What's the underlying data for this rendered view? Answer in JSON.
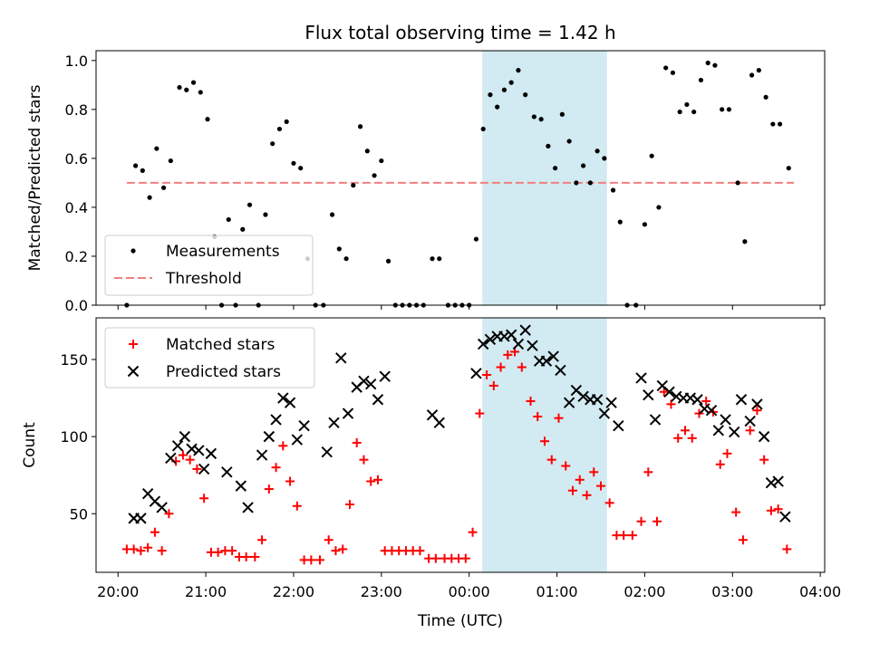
{
  "chart_data": [
    {
      "type": "scatter",
      "panel": "top",
      "title": "Flux total observing time = 1.42 h",
      "xlabel": "",
      "ylabel": "Matched/Predicted stars",
      "ylim": [
        0,
        1.04
      ],
      "yticks": [
        "0.0",
        "0.2",
        "0.4",
        "0.6",
        "0.8",
        "1.0"
      ],
      "ytick_values": [
        0,
        0.2,
        0.4,
        0.6,
        0.8,
        1.0
      ],
      "x_unit": "hours after 20:00 UTC",
      "xlim": [
        -0.25,
        8.05
      ],
      "threshold": {
        "name": "Threshold",
        "value": 0.5,
        "x_start": 0.1,
        "x_end": 7.7,
        "color": "#f08080"
      },
      "highlight": {
        "x_start": 4.15,
        "x_end": 5.57,
        "color": "#add8e6"
      },
      "legend": {
        "position": "lower-left",
        "entries": [
          "Measurements",
          "Threshold"
        ]
      },
      "series": [
        {
          "name": "Measurements",
          "color": "#000000",
          "points": [
            [
              0.1,
              0.0
            ],
            [
              0.2,
              0.57
            ],
            [
              0.28,
              0.55
            ],
            [
              0.36,
              0.44
            ],
            [
              0.44,
              0.64
            ],
            [
              0.52,
              0.48
            ],
            [
              0.6,
              0.59
            ],
            [
              0.7,
              0.89
            ],
            [
              0.78,
              0.88
            ],
            [
              0.86,
              0.91
            ],
            [
              0.94,
              0.87
            ],
            [
              1.02,
              0.76
            ],
            [
              1.1,
              0.28
            ],
            [
              1.18,
              0.0
            ],
            [
              1.26,
              0.35
            ],
            [
              1.34,
              0.0
            ],
            [
              1.42,
              0.31
            ],
            [
              1.5,
              0.41
            ],
            [
              1.6,
              0.0
            ],
            [
              1.68,
              0.37
            ],
            [
              1.76,
              0.66
            ],
            [
              1.84,
              0.72
            ],
            [
              1.92,
              0.75
            ],
            [
              2.0,
              0.58
            ],
            [
              2.08,
              0.56
            ],
            [
              2.16,
              0.19
            ],
            [
              2.25,
              0.0
            ],
            [
              2.34,
              0.0
            ],
            [
              2.44,
              0.37
            ],
            [
              2.52,
              0.23
            ],
            [
              2.6,
              0.19
            ],
            [
              2.68,
              0.49
            ],
            [
              2.76,
              0.73
            ],
            [
              2.84,
              0.63
            ],
            [
              2.92,
              0.53
            ],
            [
              3.0,
              0.59
            ],
            [
              3.08,
              0.18
            ],
            [
              3.16,
              0.0
            ],
            [
              3.24,
              0.0
            ],
            [
              3.32,
              0.0
            ],
            [
              3.4,
              0.0
            ],
            [
              3.48,
              0.0
            ],
            [
              3.58,
              0.19
            ],
            [
              3.66,
              0.19
            ],
            [
              3.76,
              0.0
            ],
            [
              3.84,
              0.0
            ],
            [
              3.92,
              0.0
            ],
            [
              4.0,
              0.0
            ],
            [
              4.08,
              0.27
            ],
            [
              4.16,
              0.72
            ],
            [
              4.24,
              0.86
            ],
            [
              4.32,
              0.81
            ],
            [
              4.4,
              0.88
            ],
            [
              4.48,
              0.91
            ],
            [
              4.56,
              0.96
            ],
            [
              4.64,
              0.86
            ],
            [
              4.74,
              0.77
            ],
            [
              4.82,
              0.76
            ],
            [
              4.9,
              0.65
            ],
            [
              4.98,
              0.56
            ],
            [
              5.06,
              0.78
            ],
            [
              5.14,
              0.67
            ],
            [
              5.22,
              0.5
            ],
            [
              5.3,
              0.57
            ],
            [
              5.38,
              0.5
            ],
            [
              5.46,
              0.63
            ],
            [
              5.54,
              0.6
            ],
            [
              5.64,
              0.47
            ],
            [
              5.72,
              0.34
            ],
            [
              5.8,
              0.0
            ],
            [
              5.9,
              0.0
            ],
            [
              6.0,
              0.33
            ],
            [
              6.08,
              0.61
            ],
            [
              6.16,
              0.4
            ],
            [
              6.24,
              0.97
            ],
            [
              6.32,
              0.95
            ],
            [
              6.4,
              0.79
            ],
            [
              6.48,
              0.82
            ],
            [
              6.56,
              0.79
            ],
            [
              6.64,
              0.92
            ],
            [
              6.72,
              0.99
            ],
            [
              6.8,
              0.98
            ],
            [
              6.88,
              0.8
            ],
            [
              6.96,
              0.8
            ],
            [
              7.06,
              0.5
            ],
            [
              7.14,
              0.26
            ],
            [
              7.22,
              0.94
            ],
            [
              7.3,
              0.96
            ],
            [
              7.38,
              0.85
            ],
            [
              7.46,
              0.74
            ],
            [
              7.54,
              0.74
            ],
            [
              7.64,
              0.56
            ]
          ]
        }
      ]
    },
    {
      "type": "scatter",
      "panel": "bottom",
      "title": "",
      "xlabel": "Time (UTC)",
      "ylabel": "Count",
      "ylim": [
        12,
        177
      ],
      "yticks": [
        "50",
        "100",
        "150"
      ],
      "ytick_values": [
        50,
        100,
        150
      ],
      "x_unit": "hours after 20:00 UTC",
      "xlim": [
        -0.25,
        8.05
      ],
      "xticks": [
        "20:00",
        "21:00",
        "22:00",
        "23:00",
        "00:00",
        "01:00",
        "02:00",
        "03:00",
        "04:00"
      ],
      "xtick_values": [
        0,
        1,
        2,
        3,
        4,
        5,
        6,
        7,
        8
      ],
      "highlight": {
        "x_start": 4.15,
        "x_end": 5.57,
        "color": "#add8e6"
      },
      "legend": {
        "position": "upper-left",
        "entries": [
          "Matched stars",
          "Predicted stars"
        ]
      },
      "series": [
        {
          "name": "Matched stars",
          "color": "#ff0000",
          "marker": "plus",
          "points": [
            [
              0.1,
              27
            ],
            [
              0.18,
              27
            ],
            [
              0.26,
              26
            ],
            [
              0.34,
              28
            ],
            [
              0.42,
              38
            ],
            [
              0.5,
              26
            ],
            [
              0.58,
              50
            ],
            [
              0.66,
              84
            ],
            [
              0.74,
              88
            ],
            [
              0.82,
              85
            ],
            [
              0.9,
              79
            ],
            [
              0.98,
              60
            ],
            [
              1.06,
              25
            ],
            [
              1.14,
              25
            ],
            [
              1.22,
              26
            ],
            [
              1.3,
              26
            ],
            [
              1.38,
              22
            ],
            [
              1.46,
              22
            ],
            [
              1.56,
              22
            ],
            [
              1.64,
              33
            ],
            [
              1.72,
              66
            ],
            [
              1.8,
              80
            ],
            [
              1.88,
              94
            ],
            [
              1.96,
              71
            ],
            [
              2.04,
              55
            ],
            [
              2.12,
              20
            ],
            [
              2.2,
              20
            ],
            [
              2.3,
              20
            ],
            [
              2.4,
              33
            ],
            [
              2.48,
              26
            ],
            [
              2.56,
              27
            ],
            [
              2.64,
              56
            ],
            [
              2.72,
              96
            ],
            [
              2.8,
              85
            ],
            [
              2.88,
              71
            ],
            [
              2.96,
              72
            ],
            [
              3.04,
              26
            ],
            [
              3.12,
              26
            ],
            [
              3.2,
              26
            ],
            [
              3.28,
              26
            ],
            [
              3.36,
              26
            ],
            [
              3.44,
              26
            ],
            [
              3.54,
              21
            ],
            [
              3.62,
              21
            ],
            [
              3.72,
              21
            ],
            [
              3.8,
              21
            ],
            [
              3.88,
              21
            ],
            [
              3.96,
              21
            ],
            [
              4.04,
              38
            ],
            [
              4.12,
              115
            ],
            [
              4.2,
              140
            ],
            [
              4.28,
              133
            ],
            [
              4.36,
              145
            ],
            [
              4.44,
              153
            ],
            [
              4.52,
              155
            ],
            [
              4.6,
              145
            ],
            [
              4.7,
              123
            ],
            [
              4.78,
              113
            ],
            [
              4.86,
              97
            ],
            [
              4.94,
              85
            ],
            [
              5.02,
              112
            ],
            [
              5.1,
              81
            ],
            [
              5.18,
              65
            ],
            [
              5.26,
              72
            ],
            [
              5.34,
              62
            ],
            [
              5.42,
              77
            ],
            [
              5.5,
              68
            ],
            [
              5.6,
              57
            ],
            [
              5.68,
              36
            ],
            [
              5.76,
              36
            ],
            [
              5.86,
              36
            ],
            [
              5.96,
              45
            ],
            [
              6.04,
              77
            ],
            [
              6.14,
              45
            ],
            [
              6.22,
              129
            ],
            [
              6.3,
              121
            ],
            [
              6.38,
              99
            ],
            [
              6.46,
              104
            ],
            [
              6.54,
              99
            ],
            [
              6.62,
              115
            ],
            [
              6.7,
              123
            ],
            [
              6.78,
              116
            ],
            [
              6.86,
              82
            ],
            [
              6.94,
              89
            ],
            [
              7.04,
              51
            ],
            [
              7.12,
              33
            ],
            [
              7.2,
              104
            ],
            [
              7.28,
              117
            ],
            [
              7.36,
              85
            ],
            [
              7.44,
              52
            ],
            [
              7.52,
              53
            ],
            [
              7.62,
              27
            ]
          ]
        },
        {
          "name": "Predicted stars",
          "color": "#000000",
          "marker": "x",
          "points": [
            [
              0.18,
              47
            ],
            [
              0.26,
              47
            ],
            [
              0.34,
              63
            ],
            [
              0.42,
              58
            ],
            [
              0.5,
              54
            ],
            [
              0.6,
              86
            ],
            [
              0.68,
              94
            ],
            [
              0.76,
              100
            ],
            [
              0.84,
              92
            ],
            [
              0.92,
              91
            ],
            [
              0.98,
              79
            ],
            [
              1.06,
              89
            ],
            [
              1.24,
              77
            ],
            [
              1.4,
              68
            ],
            [
              1.48,
              54
            ],
            [
              1.64,
              88
            ],
            [
              1.72,
              100
            ],
            [
              1.8,
              111
            ],
            [
              1.88,
              125
            ],
            [
              1.96,
              122
            ],
            [
              2.04,
              98
            ],
            [
              2.12,
              107
            ],
            [
              2.38,
              90
            ],
            [
              2.46,
              109
            ],
            [
              2.54,
              151
            ],
            [
              2.62,
              115
            ],
            [
              2.72,
              132
            ],
            [
              2.8,
              136
            ],
            [
              2.88,
              134
            ],
            [
              2.96,
              124
            ],
            [
              3.04,
              139
            ],
            [
              3.58,
              114
            ],
            [
              3.66,
              109
            ],
            [
              4.08,
              141
            ],
            [
              4.16,
              160
            ],
            [
              4.24,
              163
            ],
            [
              4.32,
              165
            ],
            [
              4.4,
              165
            ],
            [
              4.48,
              166
            ],
            [
              4.56,
              160
            ],
            [
              4.64,
              169
            ],
            [
              4.72,
              159
            ],
            [
              4.8,
              149
            ],
            [
              4.88,
              149
            ],
            [
              4.96,
              152
            ],
            [
              5.04,
              143
            ],
            [
              5.14,
              122
            ],
            [
              5.22,
              130
            ],
            [
              5.3,
              126
            ],
            [
              5.38,
              124
            ],
            [
              5.46,
              124
            ],
            [
              5.54,
              115
            ],
            [
              5.62,
              122
            ],
            [
              5.7,
              107
            ],
            [
              5.96,
              138
            ],
            [
              6.04,
              127
            ],
            [
              6.12,
              111
            ],
            [
              6.2,
              133
            ],
            [
              6.28,
              129
            ],
            [
              6.36,
              126
            ],
            [
              6.44,
              125
            ],
            [
              6.52,
              125
            ],
            [
              6.6,
              124
            ],
            [
              6.68,
              118
            ],
            [
              6.76,
              117
            ],
            [
              6.84,
              104
            ],
            [
              6.92,
              111
            ],
            [
              7.02,
              103
            ],
            [
              7.1,
              124
            ],
            [
              7.2,
              110
            ],
            [
              7.28,
              121
            ],
            [
              7.36,
              100
            ],
            [
              7.44,
              70
            ],
            [
              7.52,
              71
            ],
            [
              7.6,
              48
            ]
          ]
        }
      ]
    }
  ]
}
